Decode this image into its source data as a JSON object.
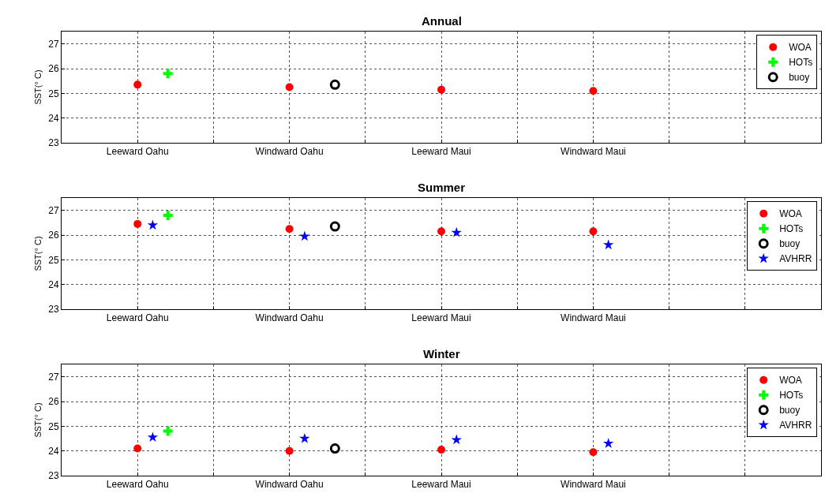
{
  "chart_data": [
    {
      "type": "scatter",
      "title": "Annual",
      "ylabel": "SST(° C)",
      "ylim": [
        23,
        27.5
      ],
      "categories": [
        "Leeward Oahu",
        "Windward Oahu",
        "Leeward Maui",
        "Windward Maui",
        null
      ],
      "yticks": [
        23,
        24,
        25,
        26,
        27
      ],
      "grid": true,
      "legend": "top right",
      "series": [
        {
          "name": "WOA",
          "color": "#ff0000",
          "marker": "circle",
          "values": [
            25.35,
            25.25,
            25.15,
            25.1,
            null
          ]
        },
        {
          "name": "HOTs",
          "color": "#00ff00",
          "marker": "cross",
          "values": [
            25.8,
            null,
            null,
            null,
            null
          ]
        },
        {
          "name": "buoy",
          "color": "#000000",
          "marker": "circle-open",
          "values": [
            null,
            25.35,
            null,
            null,
            null
          ]
        }
      ]
    },
    {
      "type": "scatter",
      "title": "Summer",
      "ylabel": "SST(° C)",
      "ylim": [
        23,
        27.5
      ],
      "categories": [
        "Leeward Oahu",
        "Windward Oahu",
        "Leeward Maui",
        "Windward Maui",
        null
      ],
      "yticks": [
        23,
        24,
        25,
        26,
        27
      ],
      "grid": true,
      "legend": "top right",
      "series": [
        {
          "name": "WOA",
          "color": "#ff0000",
          "marker": "circle",
          "values": [
            26.45,
            26.25,
            26.15,
            26.15,
            null
          ]
        },
        {
          "name": "HOTs",
          "color": "#00ff00",
          "marker": "cross",
          "values": [
            26.8,
            null,
            null,
            null,
            null
          ]
        },
        {
          "name": "buoy",
          "color": "#000000",
          "marker": "circle-open",
          "values": [
            null,
            26.35,
            null,
            null,
            null
          ]
        },
        {
          "name": "AVHRR",
          "color": "#0000ff",
          "marker": "star",
          "values": [
            26.4,
            25.95,
            26.1,
            25.6,
            null
          ]
        }
      ]
    },
    {
      "type": "scatter",
      "title": "Winter",
      "ylabel": "SST(° C)",
      "ylim": [
        23,
        27.5
      ],
      "categories": [
        "Leeward Oahu",
        "Windward Oahu",
        "Leeward Maui",
        "Windward Maui",
        null
      ],
      "yticks": [
        23,
        24,
        25,
        26,
        27
      ],
      "grid": true,
      "legend": "top right",
      "series": [
        {
          "name": "WOA",
          "color": "#ff0000",
          "marker": "circle",
          "values": [
            24.1,
            24.0,
            24.05,
            23.95,
            null
          ]
        },
        {
          "name": "HOTs",
          "color": "#00ff00",
          "marker": "cross",
          "values": [
            24.8,
            null,
            null,
            null,
            null
          ]
        },
        {
          "name": "buoy",
          "color": "#000000",
          "marker": "circle-open",
          "values": [
            null,
            24.1,
            null,
            null,
            null
          ]
        },
        {
          "name": "AVHRR",
          "color": "#0000ff",
          "marker": "star",
          "values": [
            24.55,
            24.5,
            24.45,
            24.3,
            null
          ]
        }
      ]
    }
  ]
}
